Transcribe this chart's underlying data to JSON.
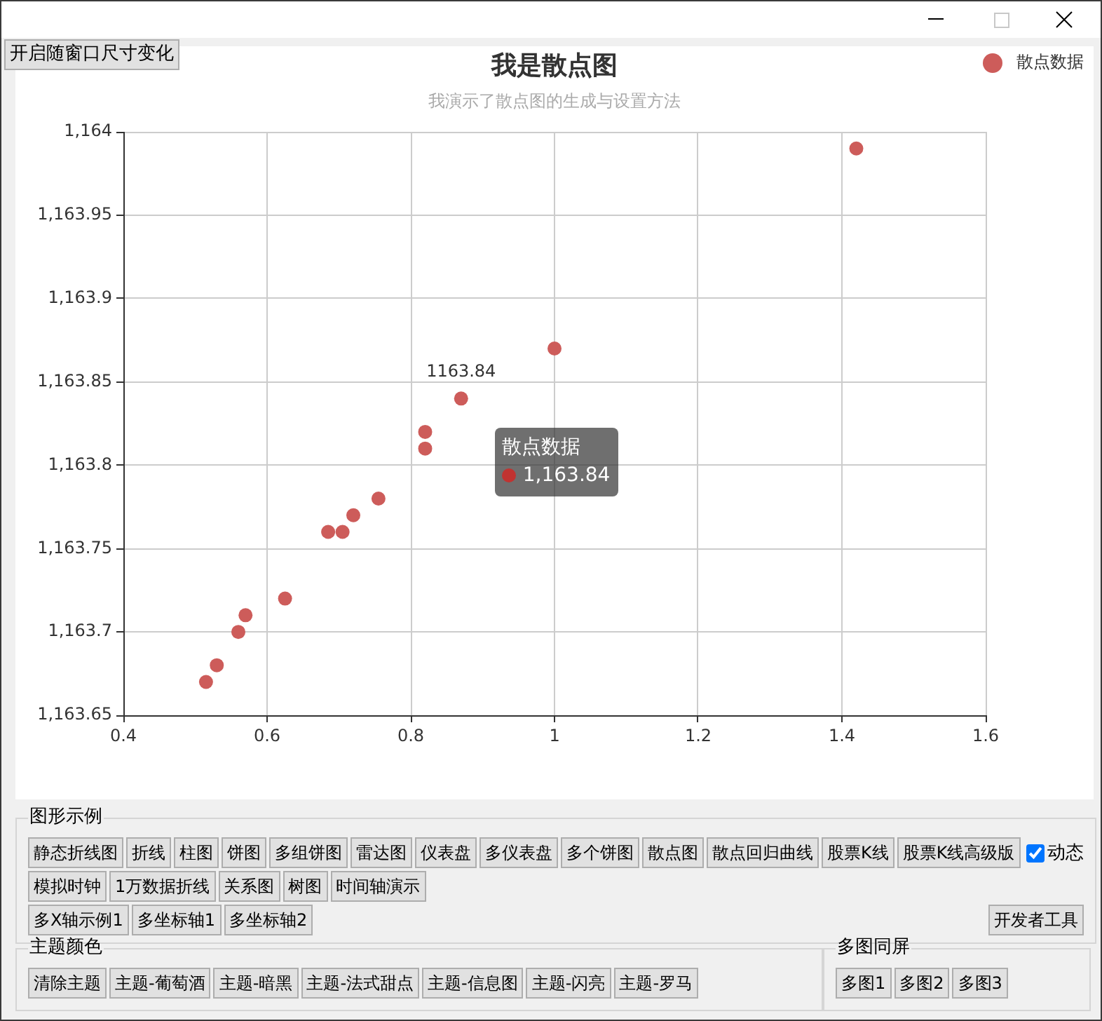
{
  "chart_data": {
    "type": "scatter",
    "title": "我是散点图",
    "subtitle": "我演示了散点图的生成与设置方法",
    "x": [
      0.515,
      0.53,
      0.56,
      0.57,
      0.625,
      0.685,
      0.705,
      0.72,
      0.755,
      0.82,
      0.82,
      0.87,
      1.0,
      1.42
    ],
    "series": [
      {
        "name": "散点数据",
        "color": "#cd5c5a",
        "values": [
          1163.67,
          1163.68,
          1163.7,
          1163.71,
          1163.72,
          1163.76,
          1163.76,
          1163.77,
          1163.78,
          1163.82,
          1163.81,
          1163.84,
          1163.87,
          1163.99
        ]
      }
    ],
    "xlim": [
      0.4,
      1.6
    ],
    "xticks": [
      0.4,
      0.6,
      0.8,
      1,
      1.2,
      1.4,
      1.6
    ],
    "ylim": [
      1163.65,
      1164
    ],
    "yticks": [
      {
        "value": 1164,
        "label": "1,164"
      },
      {
        "value": 1163.95,
        "label": "1,163.95"
      },
      {
        "value": 1163.9,
        "label": "1,163.9"
      },
      {
        "value": 1163.85,
        "label": "1,163.85"
      },
      {
        "value": 1163.8,
        "label": "1,163.8"
      },
      {
        "value": 1163.75,
        "label": "1,163.75"
      },
      {
        "value": 1163.7,
        "label": "1,163.7"
      },
      {
        "value": 1163.65,
        "label": "1,163.65"
      }
    ],
    "grid": true,
    "legend": "top right",
    "marker": "circle",
    "annotations": [
      {
        "text": "1163.84",
        "x": 0.87,
        "y": 1163.84
      },
      "1,163.84",
      "开启随窗口尺寸变化",
      "图形示例",
      "静态折线图",
      "折线",
      "柱图",
      "饼图",
      "多组饼图",
      "雷达图",
      "仪表盘",
      "多仪表盘",
      "多个饼图",
      "散点图",
      "散点回归曲线",
      "股票K线",
      "股票K线高级版",
      "动态",
      "模拟时钟",
      "1万数据折线",
      "关系图",
      "树图",
      "时间轴演示",
      "多X轴示例1",
      "多坐标轴1",
      "多坐标轴2",
      "开发者工具",
      "主题颜色",
      "清除主题",
      "主题-葡萄酒",
      "主题-暗黑",
      "主题-法式甜点",
      "主题-信息图",
      "主题-闪亮",
      "主题-罗马",
      "多图同屏",
      "多图1",
      "多图2",
      "多图3"
    ]
  }
}
